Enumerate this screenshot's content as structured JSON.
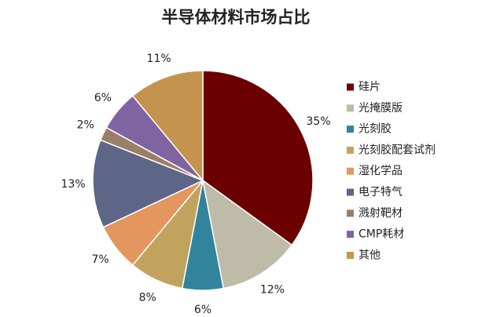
{
  "chart_data": {
    "type": "pie",
    "title": "半导体材料市场占比",
    "categories": [
      "硅片",
      "光掩膜版",
      "光刻胶",
      "光刻胶配套试剂",
      "湿化学品",
      "电子特气",
      "溅射靶材",
      "CMP耗材",
      "其他"
    ],
    "values": [
      35,
      12,
      6,
      8,
      7,
      13,
      2,
      6,
      11
    ],
    "value_labels": [
      "35%",
      "12%",
      "6%",
      "8%",
      "7%",
      "13%",
      "2%",
      "6%",
      "11%"
    ],
    "colors": [
      "#6b0000",
      "#bebca9",
      "#31849b",
      "#c2a35e",
      "#e4965f",
      "#5e6687",
      "#9b7e68",
      "#8064a2",
      "#c4944f"
    ],
    "legend": "right"
  }
}
